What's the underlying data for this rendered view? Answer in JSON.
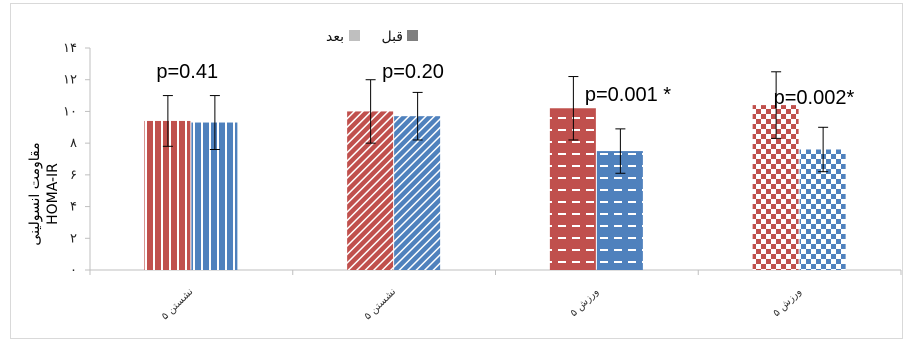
{
  "chart_data": {
    "type": "bar",
    "ylabel": "مقاومت انسولینی HOMA-IR",
    "yticks": [
      "۰",
      "۲",
      "۴",
      "۶",
      "۸",
      "۱۰",
      "۱۲",
      "۱۴"
    ],
    "ylim": [
      0,
      14
    ],
    "categories": [
      "نشستن ۵",
      "نشستن ۵",
      "ورزش ۵",
      "ورزش ۵"
    ],
    "series": [
      {
        "name": "قبل",
        "color": "#c0504d",
        "values": [
          9.4,
          10.0,
          10.2,
          10.4
        ],
        "errors": [
          1.6,
          2.0,
          2.0,
          2.1
        ]
      },
      {
        "name": "بعد",
        "color": "#4f81bd",
        "values": [
          9.3,
          9.7,
          7.5,
          7.6
        ],
        "errors": [
          1.7,
          1.5,
          1.4,
          1.4
        ]
      }
    ],
    "annotations": [
      "p=0.41",
      "p=0.20",
      "p=0.001 *",
      "p=0.002*"
    ],
    "legend_position": "top-center",
    "grid": false
  }
}
